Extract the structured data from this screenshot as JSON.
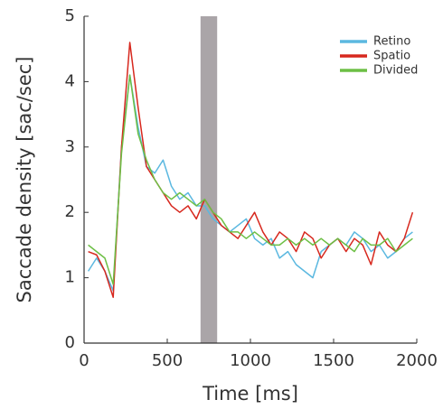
{
  "chart_data": {
    "type": "line",
    "xlabel": "Time [ms]",
    "ylabel": "Saccade density [sac/sec]",
    "xlim": [
      0,
      2000
    ],
    "ylim": [
      0,
      5
    ],
    "xticks": [
      0,
      500,
      1000,
      1500,
      2000
    ],
    "yticks": [
      0,
      1,
      2,
      3,
      4,
      5
    ],
    "shaded_region": [
      700,
      800
    ],
    "shaded_color": "#aaa5a8",
    "legend": "upper right",
    "x": [
      25,
      75,
      125,
      175,
      225,
      275,
      325,
      375,
      425,
      475,
      525,
      575,
      625,
      675,
      725,
      775,
      825,
      875,
      925,
      975,
      1025,
      1075,
      1125,
      1175,
      1225,
      1275,
      1325,
      1375,
      1425,
      1475,
      1525,
      1575,
      1625,
      1675,
      1725,
      1775,
      1825,
      1875,
      1925,
      1975
    ],
    "series": [
      {
        "name": "Retino",
        "color": "#5bb8e0",
        "values": [
          1.1,
          1.3,
          1.1,
          0.8,
          3.0,
          4.1,
          3.3,
          2.7,
          2.6,
          2.8,
          2.4,
          2.2,
          2.3,
          2.1,
          2.1,
          1.9,
          1.8,
          1.7,
          1.8,
          1.9,
          1.6,
          1.5,
          1.6,
          1.3,
          1.4,
          1.2,
          1.1,
          1.0,
          1.4,
          1.5,
          1.6,
          1.5,
          1.7,
          1.6,
          1.4,
          1.5,
          1.3,
          1.4,
          1.6,
          1.7
        ]
      },
      {
        "name": "Spatio",
        "color": "#d7281e",
        "values": [
          1.4,
          1.35,
          1.1,
          0.7,
          3.0,
          4.6,
          3.6,
          2.7,
          2.5,
          2.3,
          2.1,
          2.0,
          2.1,
          1.9,
          2.2,
          2.0,
          1.8,
          1.7,
          1.6,
          1.8,
          2.0,
          1.7,
          1.5,
          1.7,
          1.6,
          1.4,
          1.7,
          1.6,
          1.3,
          1.5,
          1.6,
          1.4,
          1.6,
          1.5,
          1.2,
          1.7,
          1.5,
          1.4,
          1.6,
          2.0
        ]
      },
      {
        "name": "Divided",
        "color": "#6dbf45",
        "values": [
          1.5,
          1.4,
          1.3,
          0.9,
          2.9,
          4.1,
          3.2,
          2.8,
          2.5,
          2.3,
          2.2,
          2.3,
          2.2,
          2.1,
          2.2,
          2.0,
          1.9,
          1.7,
          1.7,
          1.6,
          1.7,
          1.6,
          1.5,
          1.5,
          1.6,
          1.5,
          1.6,
          1.5,
          1.6,
          1.5,
          1.6,
          1.5,
          1.4,
          1.6,
          1.5,
          1.5,
          1.6,
          1.4,
          1.5,
          1.6
        ]
      }
    ]
  }
}
